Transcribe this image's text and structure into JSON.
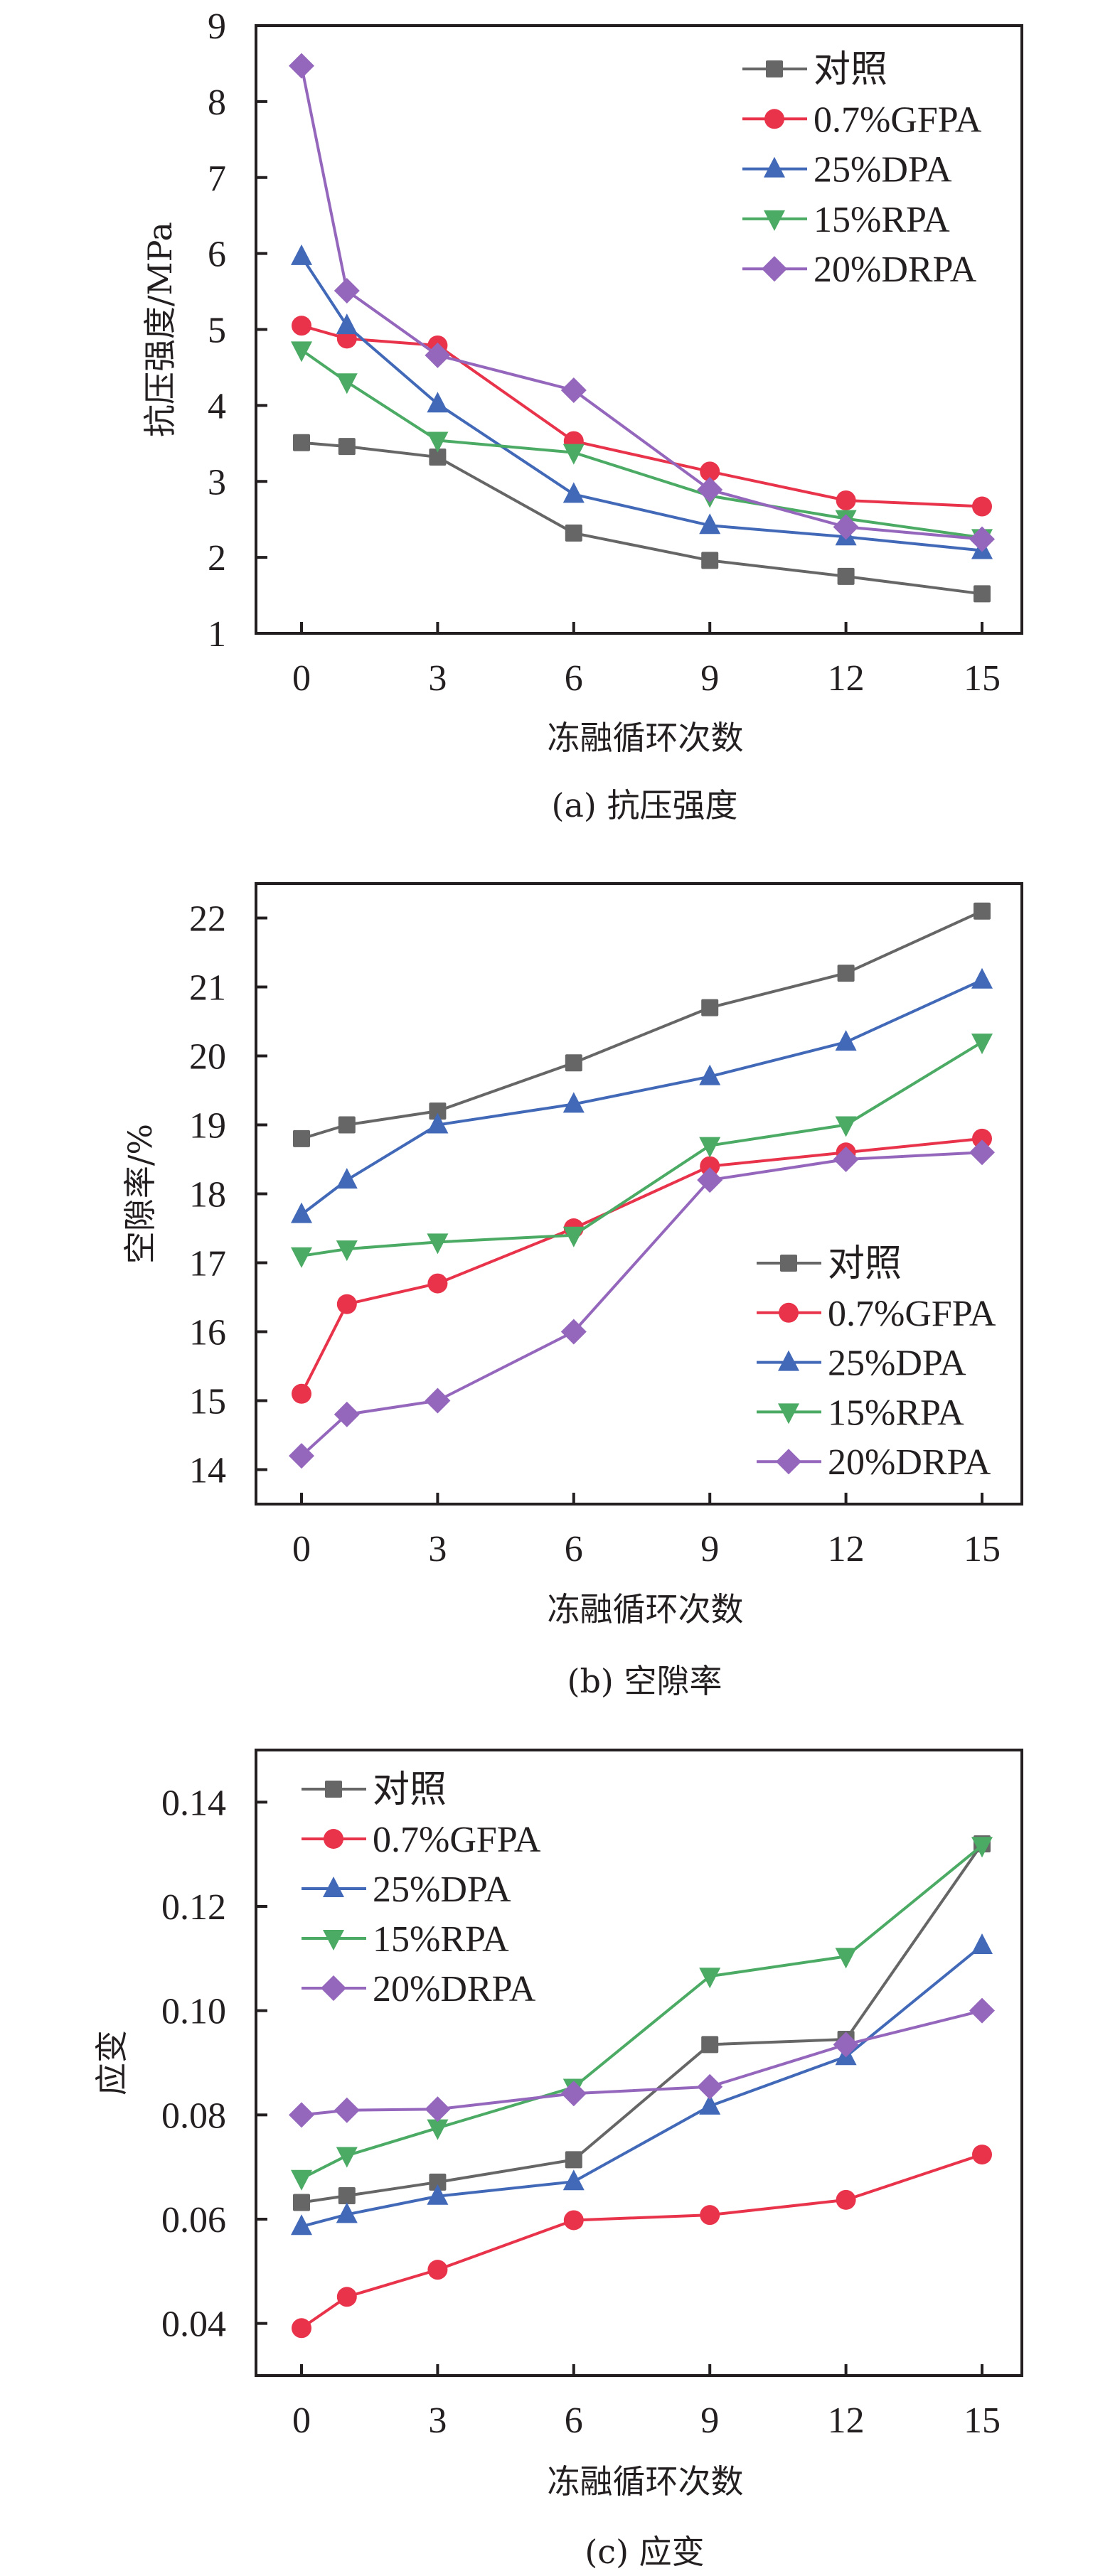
{
  "figure": {
    "series_styles": [
      {
        "name": "对照",
        "color": "#666666",
        "marker": "square"
      },
      {
        "name": "0.7%GFPA",
        "color": "#E8334A",
        "marker": "circle"
      },
      {
        "name": "25%DPA",
        "color": "#4169B8",
        "marker": "triangle-up"
      },
      {
        "name": "15%RPA",
        "color": "#4BAA64",
        "marker": "triangle-down"
      },
      {
        "name": "20%DRPA",
        "color": "#9467BD",
        "marker": "diamond"
      }
    ]
  },
  "chart_data": [
    {
      "type": "line",
      "caption": "(a) 抗压强度",
      "title": "",
      "xlabel": "冻融循环次数",
      "ylabel": "抗压强度/MPa",
      "x": [
        0,
        1,
        3,
        6,
        9,
        12,
        15
      ],
      "xticks": [
        0,
        3,
        6,
        9,
        12,
        15
      ],
      "xticklabels": [
        "0",
        "3",
        "6",
        "9",
        "12",
        "15"
      ],
      "xlim": [
        -1,
        16
      ],
      "ylim": [
        1,
        9
      ],
      "yticks": [
        1,
        2,
        3,
        4,
        5,
        6,
        7,
        8,
        9
      ],
      "yticklabels": [
        "1",
        "2",
        "3",
        "4",
        "5",
        "6",
        "7",
        "8",
        "9"
      ],
      "grid": false,
      "legend_position": "top-right",
      "series": [
        {
          "name": "对照",
          "values": [
            3.51,
            3.46,
            3.32,
            2.32,
            1.96,
            1.75,
            1.52
          ]
        },
        {
          "name": "0.7%GFPA",
          "values": [
            5.05,
            4.88,
            4.79,
            3.53,
            3.13,
            2.75,
            2.67
          ]
        },
        {
          "name": "25%DPA",
          "values": [
            5.96,
            5.05,
            4.02,
            2.83,
            2.42,
            2.27,
            2.09
          ]
        },
        {
          "name": "15%RPA",
          "values": [
            4.73,
            4.31,
            3.54,
            3.38,
            2.81,
            2.51,
            2.26
          ]
        },
        {
          "name": "20%DRPA",
          "values": [
            8.47,
            5.51,
            4.66,
            4.2,
            2.89,
            2.4,
            2.24
          ]
        }
      ]
    },
    {
      "type": "line",
      "caption": "(b) 空隙率",
      "title": "",
      "xlabel": "冻融循环次数",
      "ylabel": "空隙率/%",
      "x": [
        0,
        1,
        3,
        6,
        9,
        12,
        15
      ],
      "xticks": [
        0,
        3,
        6,
        9,
        12,
        15
      ],
      "xticklabels": [
        "0",
        "3",
        "6",
        "9",
        "12",
        "15"
      ],
      "xlim": [
        -1,
        16
      ],
      "ylim": [
        13.5,
        22.5
      ],
      "yticks": [
        14,
        15,
        16,
        17,
        18,
        19,
        20,
        21,
        22
      ],
      "yticklabels": [
        "14",
        "15",
        "16",
        "17",
        "18",
        "19",
        "20",
        "21",
        "22"
      ],
      "grid": false,
      "legend_position": "bottom-right",
      "series": [
        {
          "name": "对照",
          "values": [
            18.8,
            19.0,
            19.2,
            19.9,
            20.7,
            21.2,
            22.1
          ]
        },
        {
          "name": "0.7%GFPA",
          "values": [
            15.1,
            16.4,
            16.7,
            17.5,
            18.4,
            18.6,
            18.8
          ]
        },
        {
          "name": "25%DPA",
          "values": [
            17.7,
            18.2,
            19.0,
            19.3,
            19.7,
            20.2,
            21.1
          ]
        },
        {
          "name": "15%RPA",
          "values": [
            17.1,
            17.2,
            17.3,
            17.4,
            18.7,
            19.0,
            20.2
          ]
        },
        {
          "name": "20%DRPA",
          "values": [
            14.2,
            14.8,
            15.0,
            16.0,
            18.2,
            18.5,
            18.6
          ]
        }
      ]
    },
    {
      "type": "line",
      "caption": "(c) 应变",
      "title": "",
      "xlabel": "冻融循环次数",
      "ylabel": "应变",
      "x": [
        0,
        1,
        3,
        6,
        9,
        12,
        15
      ],
      "xticks": [
        0,
        3,
        6,
        9,
        12,
        15
      ],
      "xticklabels": [
        "0",
        "3",
        "6",
        "9",
        "12",
        "15"
      ],
      "xlim": [
        -1,
        16
      ],
      "ylim": [
        0.03,
        0.15
      ],
      "yticks": [
        0.04,
        0.06,
        0.08,
        0.1,
        0.12,
        0.14
      ],
      "yticklabels": [
        "0.04",
        "0.06",
        "0.08",
        "0.10",
        "0.12",
        "0.14"
      ],
      "grid": false,
      "legend_position": "top-left",
      "series": [
        {
          "name": "对照",
          "values": [
            0.0632,
            0.0645,
            0.0671,
            0.0714,
            0.0935,
            0.0945,
            0.132
          ]
        },
        {
          "name": "0.7%GFPA",
          "values": [
            0.0391,
            0.0451,
            0.0503,
            0.0598,
            0.0608,
            0.0637,
            0.0724
          ]
        },
        {
          "name": "25%DPA",
          "values": [
            0.0586,
            0.0609,
            0.0644,
            0.0672,
            0.0817,
            0.0912,
            0.1125
          ]
        },
        {
          "name": "15%RPA",
          "values": [
            0.0678,
            0.0722,
            0.0775,
            0.0853,
            0.1066,
            0.1104,
            0.1317
          ]
        },
        {
          "name": "20%DRPA",
          "values": [
            0.08,
            0.0809,
            0.0811,
            0.0841,
            0.0854,
            0.0935,
            0.1
          ]
        }
      ]
    }
  ]
}
